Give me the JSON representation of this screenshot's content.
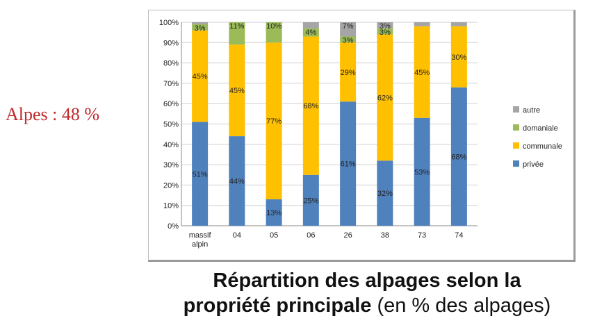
{
  "side_label": "Alpes : 48 %",
  "caption": {
    "line1": "Répartition des alpages selon la",
    "line2_bold": "propriété principale",
    "line2_normal": " (en % des alpages)"
  },
  "chart_data": {
    "type": "bar",
    "stacked": true,
    "percent": true,
    "categories": [
      "massif alpin",
      "04",
      "05",
      "06",
      "26",
      "38",
      "73",
      "74"
    ],
    "ylim": [
      0,
      100
    ],
    "yticks": [
      "0%",
      "10%",
      "20%",
      "30%",
      "40%",
      "50%",
      "60%",
      "70%",
      "80%",
      "90%",
      "100%"
    ],
    "grid": true,
    "legend_position": "right",
    "series": [
      {
        "name": "privée",
        "color": "#4f81bd",
        "values": [
          51,
          44,
          13,
          25,
          61,
          32,
          53,
          68
        ],
        "labels": [
          "51%",
          "44%",
          "13%",
          "25%",
          "61%",
          "32%",
          "53%",
          "68%"
        ]
      },
      {
        "name": "communale",
        "color": "#ffc000",
        "values": [
          45,
          45,
          77,
          68,
          29,
          62,
          45,
          30
        ],
        "labels": [
          "45%",
          "45%",
          "77%",
          "68%",
          "29%",
          "62%",
          "45%",
          "30%"
        ]
      },
      {
        "name": "domaniale",
        "color": "#9bbb59",
        "values": [
          3,
          11,
          10,
          4,
          3,
          3,
          0,
          0
        ],
        "labels": [
          "3%",
          "11%",
          "10%",
          "4%",
          "3%",
          "3%",
          "",
          ""
        ]
      },
      {
        "name": "autre",
        "color": "#a5a5a5",
        "values": [
          1,
          0,
          0,
          3,
          7,
          3,
          2,
          2
        ],
        "labels": [
          "",
          "",
          "",
          "",
          "7%",
          "3%",
          "",
          ""
        ]
      }
    ],
    "legend_order": [
      "autre",
      "domaniale",
      "communale",
      "privée"
    ]
  }
}
